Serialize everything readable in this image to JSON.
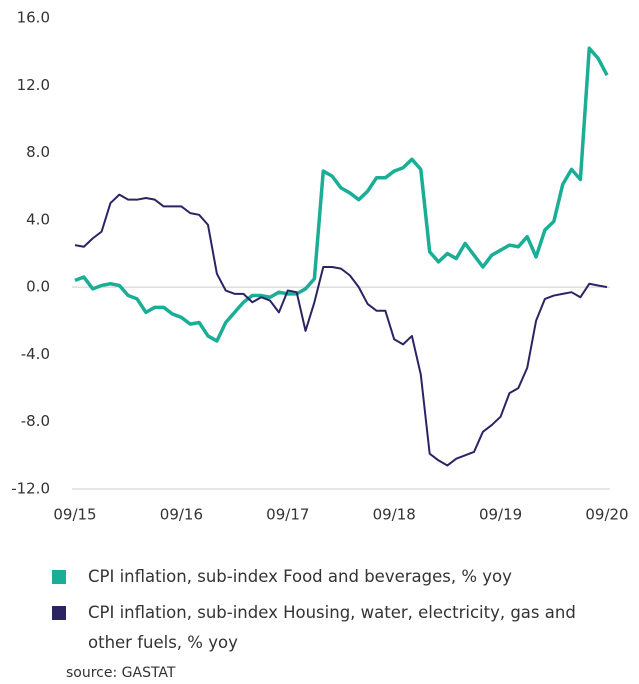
{
  "chart_data": {
    "type": "line",
    "categories": [
      "09/15",
      null,
      null,
      null,
      null,
      null,
      null,
      null,
      null,
      null,
      null,
      null,
      "09/16",
      null,
      null,
      null,
      null,
      null,
      null,
      null,
      null,
      null,
      null,
      null,
      "09/17",
      null,
      null,
      null,
      null,
      null,
      null,
      null,
      null,
      null,
      null,
      null,
      "09/18",
      null,
      null,
      null,
      null,
      null,
      null,
      null,
      null,
      null,
      null,
      null,
      "09/19",
      null,
      null,
      null,
      null,
      null,
      null,
      null,
      null,
      null,
      null,
      null,
      "09/20"
    ],
    "series": [
      {
        "name": "CPI inflation, sub-index Food and beverages, % yoy",
        "color": "#1aae96",
        "values": [
          0.4,
          0.6,
          -0.1,
          0.1,
          0.2,
          0.1,
          -0.5,
          -0.7,
          -1.5,
          -1.2,
          -1.2,
          -1.6,
          -1.8,
          -2.2,
          -2.1,
          -2.9,
          -3.2,
          -2.1,
          -1.5,
          -0.9,
          -0.5,
          -0.5,
          -0.6,
          -0.3,
          -0.4,
          -0.4,
          -0.1,
          0.5,
          6.9,
          6.6,
          5.9,
          5.6,
          5.2,
          5.7,
          6.5,
          6.5,
          6.9,
          7.1,
          7.6,
          7.0,
          2.1,
          1.5,
          2.0,
          1.7,
          2.6,
          1.9,
          1.2,
          1.9,
          2.2,
          2.5,
          2.4,
          3.0,
          1.8,
          3.4,
          3.9,
          6.1,
          7.0,
          6.4,
          14.2,
          13.6,
          12.6
        ]
      },
      {
        "name": "CPI inflation, sub-index Housing, water, electricity, gas and other fuels, % yoy",
        "color": "#2b2463",
        "values": [
          2.5,
          2.4,
          2.9,
          3.3,
          5.0,
          5.5,
          5.2,
          5.2,
          5.3,
          5.2,
          4.8,
          4.8,
          4.8,
          4.4,
          4.3,
          3.7,
          0.8,
          -0.2,
          -0.4,
          -0.4,
          -0.9,
          -0.6,
          -0.8,
          -1.5,
          -0.2,
          -0.3,
          -2.6,
          -0.9,
          1.2,
          1.2,
          1.1,
          0.7,
          0.0,
          -1.0,
          -1.4,
          -1.4,
          -3.1,
          -3.4,
          -2.9,
          -5.2,
          -9.9,
          -10.3,
          -10.6,
          -10.2,
          -10.0,
          -9.8,
          -8.6,
          -8.2,
          -7.7,
          -6.3,
          -6.0,
          -4.8,
          -2.0,
          -0.7,
          -0.5,
          -0.4,
          -0.3,
          -0.6,
          0.2,
          0.1,
          0.0
        ]
      }
    ],
    "ylim": [
      -12,
      16
    ],
    "yticks": [
      {
        "value": 16,
        "label": "16.0"
      },
      {
        "value": 12,
        "label": "12.0"
      },
      {
        "value": 8,
        "label": "8.0"
      },
      {
        "value": 4,
        "label": "4.0"
      },
      {
        "value": 0,
        "label": "0.0"
      },
      {
        "value": -4,
        "label": "-4.0"
      },
      {
        "value": -8,
        "label": "-8.0"
      },
      {
        "value": -12,
        "label": "-12.0"
      }
    ],
    "source": "source:  GASTAT"
  }
}
